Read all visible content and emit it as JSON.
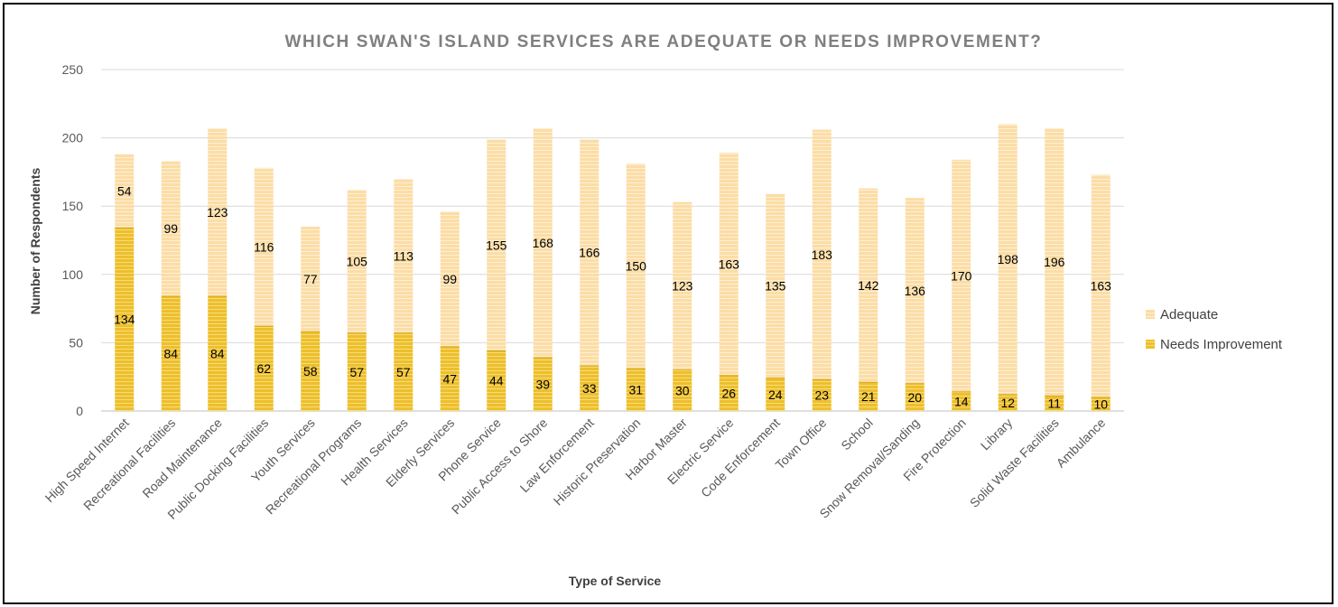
{
  "chart_data": {
    "type": "bar",
    "stacked": true,
    "title": "WHICH SWAN'S ISLAND SERVICES ARE ADEQUATE OR NEEDS IMPROVEMENT?",
    "xlabel": "Type of Service",
    "ylabel": "Number of Respondents",
    "ylim": [
      0,
      250
    ],
    "yticks": [
      0,
      50,
      100,
      150,
      200,
      250
    ],
    "grid": true,
    "legend_position": "right",
    "categories": [
      "High Speed Internet",
      "Recreational Facilities",
      "Road Maintenance",
      "Public Docking Facilities",
      "Youth Services",
      "Recreational Programs",
      "Health Services",
      "Elderly Services",
      "Phone Service",
      "Public Access to Shore",
      "Law Enforcement",
      "Historic Preservation",
      "Harbor Master",
      "Electric Service",
      "Code Enforcement",
      "Town Office",
      "School",
      "Snow Removal/Sanding",
      "Fire Protection",
      "Library",
      "Solid Waste Facilities",
      "Ambulance"
    ],
    "series": [
      {
        "name": "Needs Improvement",
        "color": "#EDBF2B",
        "values": [
          134,
          84,
          84,
          62,
          58,
          57,
          57,
          47,
          44,
          39,
          33,
          31,
          30,
          26,
          24,
          23,
          21,
          20,
          14,
          12,
          11,
          10
        ]
      },
      {
        "name": "Adequate",
        "color": "#FBDDA6",
        "values": [
          54,
          99,
          123,
          116,
          77,
          105,
          113,
          99,
          155,
          168,
          166,
          150,
          123,
          163,
          135,
          183,
          142,
          136,
          170,
          198,
          196,
          163
        ]
      }
    ]
  }
}
